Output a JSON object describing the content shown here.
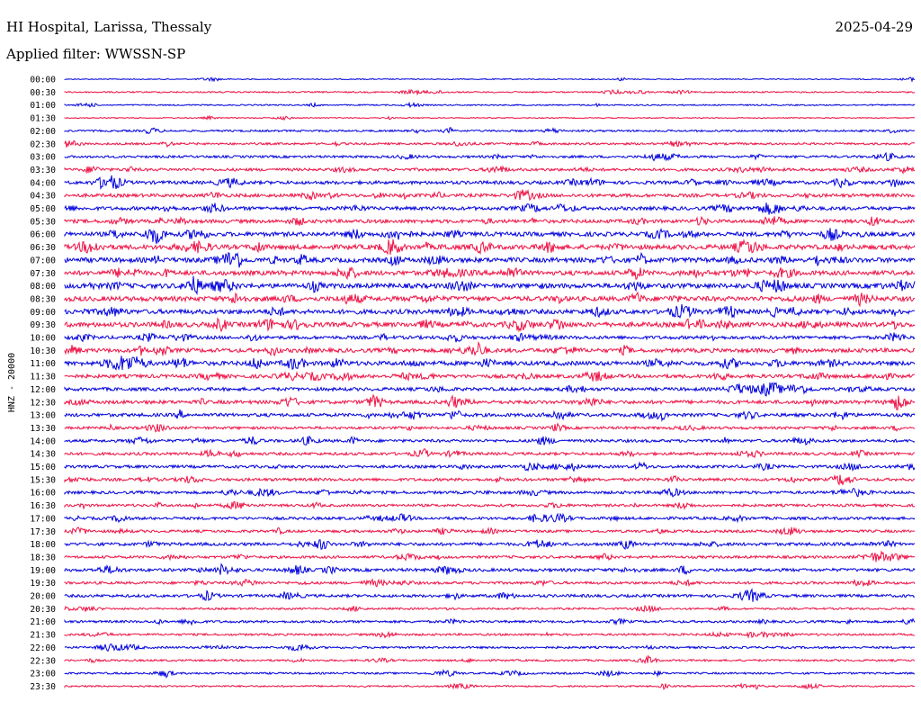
{
  "header": {
    "station": "HI Hospital, Larissa, Thessaly",
    "date": "2025-04-29",
    "filter": "Applied filter: WWSSN-SP"
  },
  "axis": {
    "side_label": "HNZ - 20000"
  },
  "colors": {
    "trace_a": "#0000dd",
    "trace_b": "#ee1144",
    "background": "#ffffff"
  },
  "rows": [
    {
      "time": "00:00",
      "activity": 0.05
    },
    {
      "time": "00:30",
      "activity": 0.15
    },
    {
      "time": "01:00",
      "activity": 0.12
    },
    {
      "time": "01:30",
      "activity": 0.05
    },
    {
      "time": "02:00",
      "activity": 0.25
    },
    {
      "time": "02:30",
      "activity": 0.3
    },
    {
      "time": "03:00",
      "activity": 0.35
    },
    {
      "time": "03:30",
      "activity": 0.45
    },
    {
      "time": "04:00",
      "activity": 0.55
    },
    {
      "time": "04:30",
      "activity": 0.55
    },
    {
      "time": "05:00",
      "activity": 0.6
    },
    {
      "time": "05:30",
      "activity": 0.6
    },
    {
      "time": "06:00",
      "activity": 0.75
    },
    {
      "time": "06:30",
      "activity": 0.85
    },
    {
      "time": "07:00",
      "activity": 0.85
    },
    {
      "time": "07:30",
      "activity": 0.8
    },
    {
      "time": "08:00",
      "activity": 0.85
    },
    {
      "time": "08:30",
      "activity": 0.85
    },
    {
      "time": "09:00",
      "activity": 0.8
    },
    {
      "time": "09:30",
      "activity": 0.85
    },
    {
      "time": "10:00",
      "activity": 0.55
    },
    {
      "time": "10:30",
      "activity": 0.7
    },
    {
      "time": "11:00",
      "activity": 0.75
    },
    {
      "time": "11:30",
      "activity": 0.6
    },
    {
      "time": "12:00",
      "activity": 0.55
    },
    {
      "time": "12:30",
      "activity": 0.6
    },
    {
      "time": "13:00",
      "activity": 0.55
    },
    {
      "time": "13:30",
      "activity": 0.4
    },
    {
      "time": "14:00",
      "activity": 0.45
    },
    {
      "time": "14:30",
      "activity": 0.45
    },
    {
      "time": "15:00",
      "activity": 0.45
    },
    {
      "time": "15:30",
      "activity": 0.45
    },
    {
      "time": "16:00",
      "activity": 0.45
    },
    {
      "time": "16:30",
      "activity": 0.4
    },
    {
      "time": "17:00",
      "activity": 0.45
    },
    {
      "time": "17:30",
      "activity": 0.4
    },
    {
      "time": "18:00",
      "activity": 0.5
    },
    {
      "time": "18:30",
      "activity": 0.4
    },
    {
      "time": "19:00",
      "activity": 0.5
    },
    {
      "time": "19:30",
      "activity": 0.4
    },
    {
      "time": "20:00",
      "activity": 0.45
    },
    {
      "time": "20:30",
      "activity": 0.25
    },
    {
      "time": "21:00",
      "activity": 0.35
    },
    {
      "time": "21:30",
      "activity": 0.3
    },
    {
      "time": "22:00",
      "activity": 0.3
    },
    {
      "time": "22:30",
      "activity": 0.25
    },
    {
      "time": "23:00",
      "activity": 0.25
    },
    {
      "time": "23:30",
      "activity": 0.2
    }
  ]
}
